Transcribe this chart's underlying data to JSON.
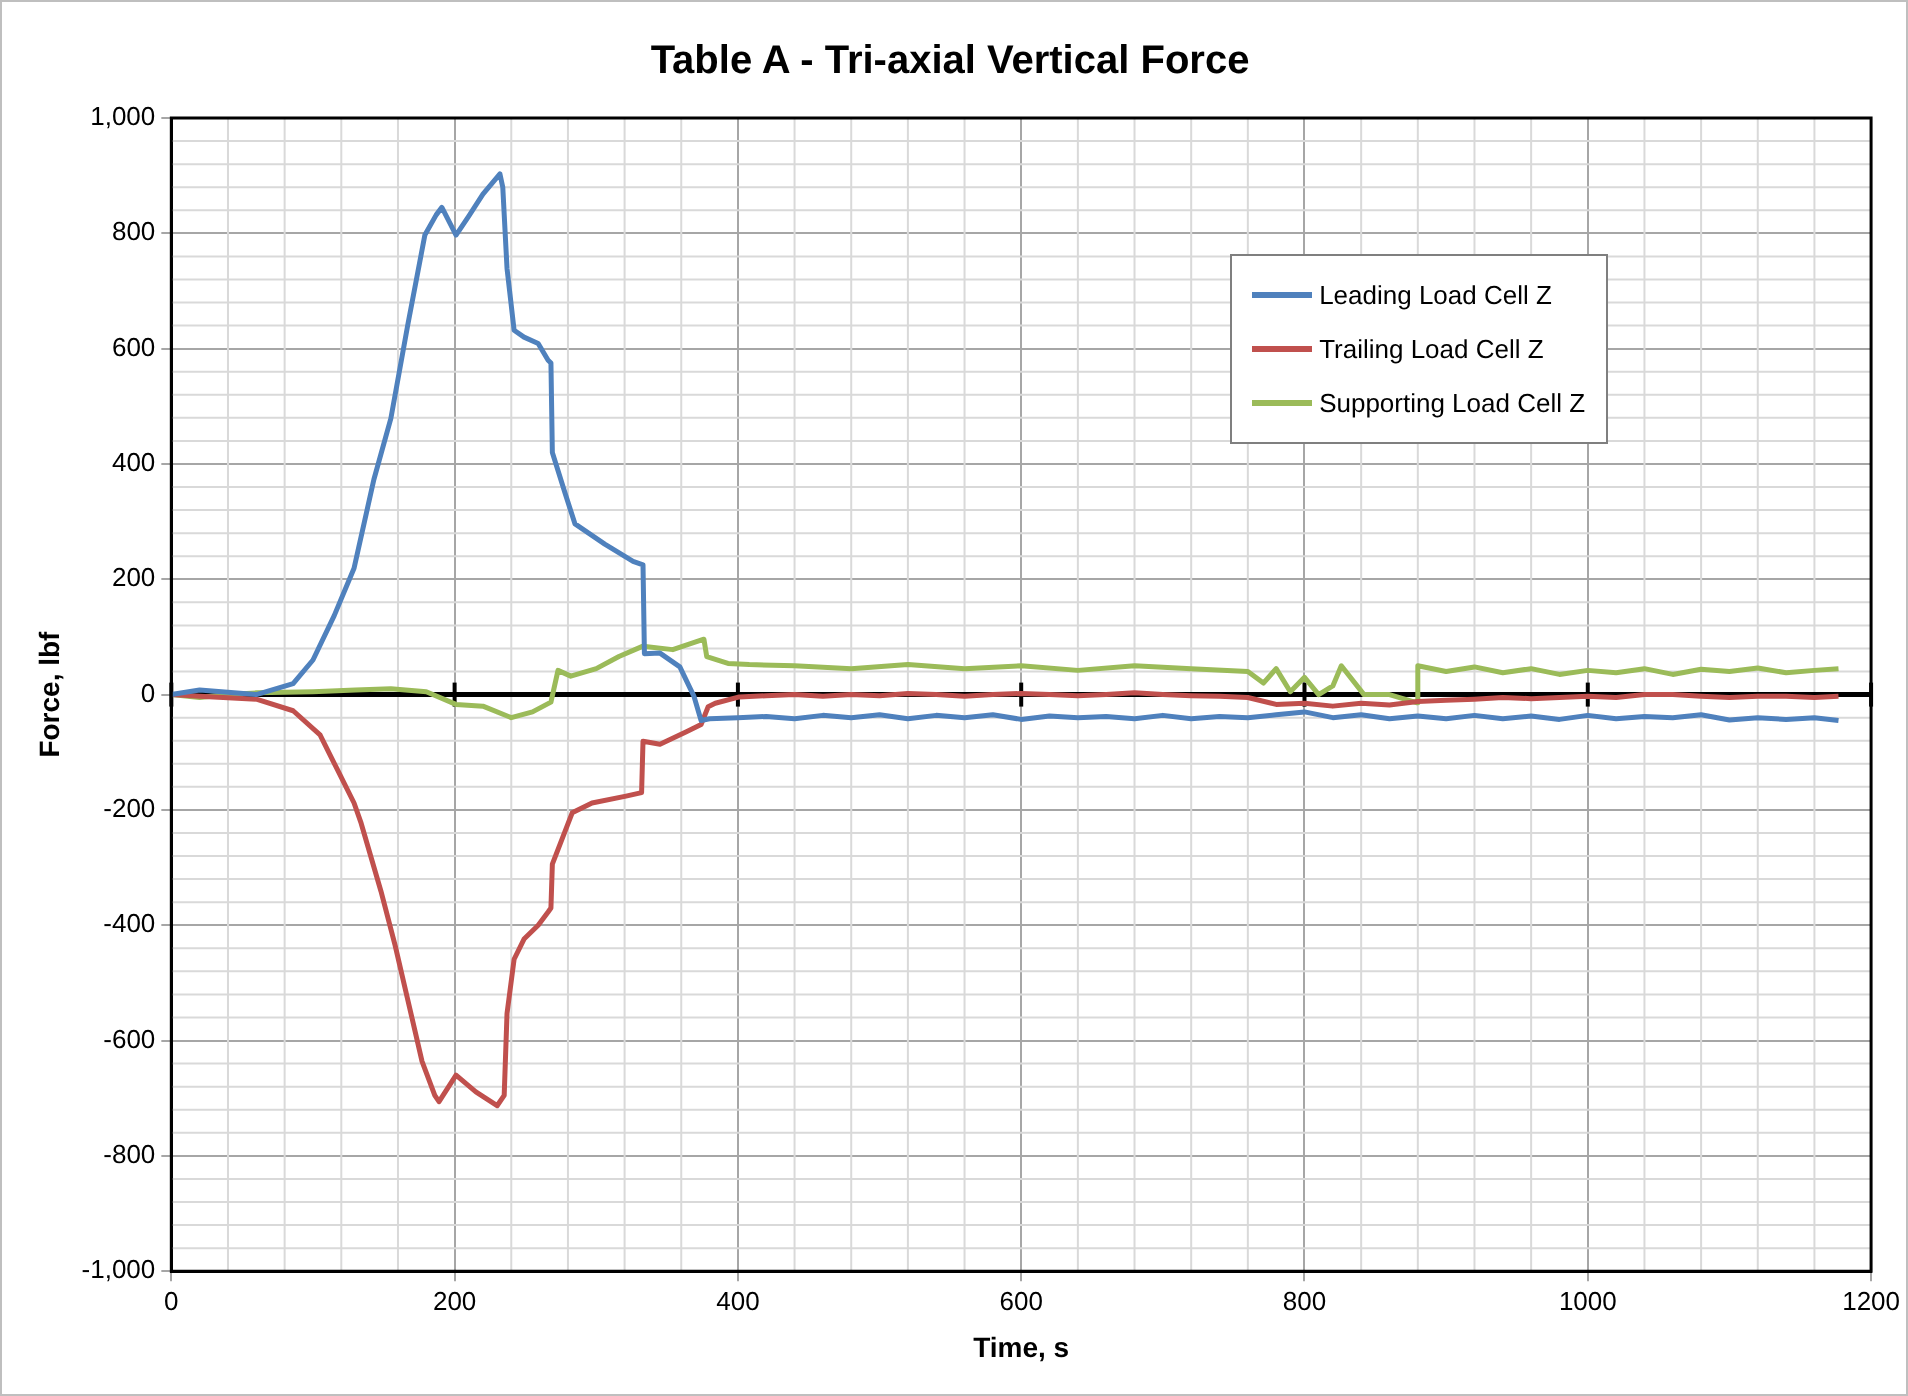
{
  "chart_data": {
    "type": "line",
    "title": "Table A - Tri-axial Vertical Force",
    "xlabel": "Time, s",
    "ylabel": "Force, lbf",
    "xlim": [
      0,
      1200
    ],
    "xticks": [
      0,
      200,
      400,
      600,
      800,
      1000,
      1200
    ],
    "ylim": [
      -1000,
      1000
    ],
    "yticks": [
      {
        "value": -1000,
        "label": "-1,000"
      },
      -800,
      -600,
      -400,
      -200,
      0,
      200,
      400,
      600,
      800,
      {
        "value": 1000,
        "label": "1,000"
      }
    ],
    "grid": true,
    "legend": "top right",
    "marker": "none",
    "line_style": "solid",
    "ref_lines": [
      {
        "axis": "y",
        "value": 0,
        "color": "#000000"
      }
    ],
    "series": [
      {
        "name": "Leading Load Cell Z",
        "color": "#4f81bd",
        "x": [
          0,
          20,
          60,
          86,
          100,
          115,
          129,
          143,
          155,
          167,
          179,
          187,
          191,
          201,
          210,
          220,
          232,
          234,
          237,
          242,
          249,
          259,
          266,
          268,
          269,
          278,
          285,
          306,
          326,
          333,
          334,
          345,
          359,
          369,
          374,
          380,
          400,
          420,
          440,
          460,
          480,
          500,
          520,
          540,
          560,
          580,
          600,
          620,
          640,
          660,
          680,
          700,
          720,
          740,
          760,
          780,
          800,
          820,
          840,
          860,
          880,
          900,
          920,
          940,
          960,
          980,
          1000,
          1020,
          1040,
          1060,
          1080,
          1100,
          1120,
          1140,
          1160,
          1177
        ],
        "values": [
          0,
          8,
          0,
          19,
          60,
          137,
          219,
          373,
          479,
          642,
          797,
          832,
          845,
          797,
          830,
          868,
          903,
          880,
          739,
          632,
          620,
          609,
          580,
          575,
          420,
          349,
          296,
          261,
          231,
          225,
          71,
          72,
          48,
          -3,
          -45,
          -42,
          -40,
          -38,
          -42,
          -36,
          -40,
          -35,
          -42,
          -36,
          -40,
          -35,
          -43,
          -37,
          -40,
          -38,
          -42,
          -36,
          -42,
          -38,
          -40,
          -35,
          -30,
          -40,
          -35,
          -42,
          -37,
          -42,
          -36,
          -42,
          -37,
          -43,
          -36,
          -42,
          -38,
          -40,
          -35,
          -44,
          -40,
          -43,
          -40,
          -45
        ]
      },
      {
        "name": "Trailing Load Cell Z",
        "color": "#c0504d",
        "x": [
          0,
          20,
          60,
          86,
          105,
          117,
          129,
          134,
          148,
          158,
          167,
          177,
          186,
          189,
          201,
          215,
          230,
          235,
          237,
          242,
          249,
          259,
          266,
          268,
          269,
          283,
          297,
          321,
          332,
          333,
          345,
          364,
          374,
          379,
          384,
          401,
          420,
          440,
          460,
          480,
          500,
          520,
          540,
          560,
          580,
          600,
          620,
          640,
          660,
          680,
          700,
          720,
          740,
          760,
          780,
          800,
          820,
          840,
          860,
          880,
          900,
          920,
          940,
          960,
          980,
          1000,
          1020,
          1040,
          1060,
          1080,
          1100,
          1120,
          1140,
          1160,
          1177
        ],
        "values": [
          0,
          -3,
          -8,
          -28,
          -70,
          -129,
          -188,
          -223,
          -341,
          -435,
          -530,
          -636,
          -695,
          -706,
          -660,
          -689,
          -713,
          -695,
          -553,
          -459,
          -424,
          -400,
          -377,
          -370,
          -294,
          -205,
          -188,
          -176,
          -170,
          -81,
          -86,
          -64,
          -52,
          -21,
          -15,
          -4,
          -2,
          0,
          -3,
          0,
          -2,
          2,
          0,
          -3,
          0,
          2,
          0,
          -2,
          0,
          3,
          0,
          -2,
          -3,
          -5,
          -17,
          -15,
          -20,
          -15,
          -18,
          -12,
          -10,
          -8,
          -5,
          -7,
          -5,
          -3,
          -5,
          0,
          0,
          -3,
          -5,
          -3,
          -3,
          -5,
          -3
        ]
      },
      {
        "name": "Supporting Load Cell Z",
        "color": "#9bbb59",
        "x": [
          0,
          20,
          40,
          60,
          100,
          130,
          155,
          180,
          201,
          220,
          240,
          255,
          268,
          273,
          282,
          300,
          316,
          333,
          354,
          376,
          378,
          393,
          408,
          440,
          480,
          520,
          560,
          600,
          640,
          680,
          720,
          760,
          771,
          780,
          790,
          800,
          810,
          820,
          826,
          842,
          860,
          879,
          880,
          900,
          920,
          940,
          960,
          980,
          1000,
          1020,
          1040,
          1060,
          1080,
          1100,
          1120,
          1140,
          1160,
          1177
        ],
        "values": [
          0,
          -5,
          0,
          3,
          5,
          8,
          10,
          5,
          -17,
          -20,
          -40,
          -30,
          -13,
          42,
          32,
          45,
          66,
          84,
          78,
          96,
          66,
          54,
          52,
          50,
          45,
          52,
          45,
          50,
          42,
          50,
          45,
          40,
          20,
          45,
          5,
          30,
          0,
          15,
          50,
          0,
          0,
          -14,
          50,
          40,
          48,
          38,
          45,
          35,
          42,
          38,
          45,
          35,
          44,
          40,
          46,
          38,
          42,
          45
        ]
      }
    ]
  }
}
